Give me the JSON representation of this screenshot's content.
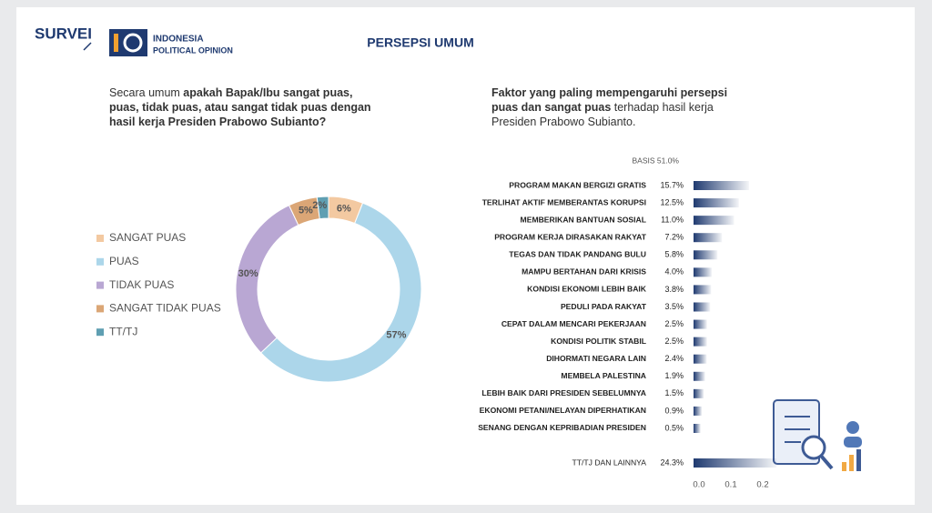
{
  "header": {
    "brand": "SURVEI",
    "org_line1": "INDONESIA",
    "org_line2": "POLITICAL OPINION",
    "title": "PERSEPSI UMUM"
  },
  "chart_data": [
    {
      "type": "pie",
      "question": [
        {
          "text": "Secara umum "
        },
        {
          "text": "apakah Bapak/Ibu sangat puas, puas, tidak puas, atau sangat tidak puas dengan hasil kerja Presiden Prabowo Subianto?",
          "bold": true
        }
      ],
      "categories": [
        "SANGAT PUAS",
        "PUAS",
        "TIDAK PUAS",
        "SANGAT TIDAK PUAS",
        "TT/TJ"
      ],
      "values": [
        6,
        57,
        30,
        5,
        2
      ],
      "value_labels": [
        "6%",
        "57%",
        "30%",
        "5%",
        "2%"
      ],
      "colors": [
        "#f3c9a1",
        "#acd6ea",
        "#b9a7d3",
        "#dba676",
        "#5f9fb2"
      ]
    },
    {
      "type": "bar",
      "horizontal": true,
      "question": [
        {
          "text": "Faktor yang paling mempengaruhi persepsi puas dan sangat puas",
          "bold": true
        },
        {
          "text": " terhadap hasil kerja Presiden Prabowo Subianto."
        }
      ],
      "basis": "BASIS 51.0%",
      "categories": [
        "PROGRAM MAKAN BERGIZI GRATIS",
        "TERLIHAT AKTIF MEMBERANTAS KORUPSI",
        "MEMBERIKAN BANTUAN SOSIAL",
        "PROGRAM KERJA DIRASAKAN RAKYAT",
        "TEGAS DAN TIDAK PANDANG BULU",
        "MAMPU BERTAHAN DARI KRISIS",
        "KONDISI EKONOMI LEBIH BAIK",
        "PEDULI PADA RAKYAT",
        "CEPAT DALAM MENCARI PEKERJAAN",
        "KONDISI POLITIK STABIL",
        "DIHORMATI NEGARA LAIN",
        "MEMBELA PALESTINA",
        "LEBIH BAIK DARI PRESIDEN SEBELUMNYA",
        "EKONOMI PETANI/NELAYAN DIPERHATIKAN",
        "SENANG DENGAN KEPRIBADIAN PRESIDEN",
        "TT/TJ DAN LAINNYA"
      ],
      "values": [
        0.157,
        0.125,
        0.11,
        0.072,
        0.058,
        0.04,
        0.038,
        0.035,
        0.025,
        0.025,
        0.024,
        0.019,
        0.015,
        0.009,
        0.005,
        0.243
      ],
      "value_labels": [
        "15.7%",
        "12.5%",
        "11.0%",
        "7.2%",
        "5.8%",
        "4.0%",
        "3.8%",
        "3.5%",
        "2.5%",
        "2.5%",
        "2.4%",
        "1.9%",
        "1.5%",
        "0.9%",
        "0.5%",
        "24.3%"
      ],
      "color": "#1f3a70",
      "xlim": [
        0,
        0.2
      ],
      "xticks": [
        {
          "value": 0,
          "label": "0.0"
        },
        0.1,
        0.2
      ]
    }
  ]
}
